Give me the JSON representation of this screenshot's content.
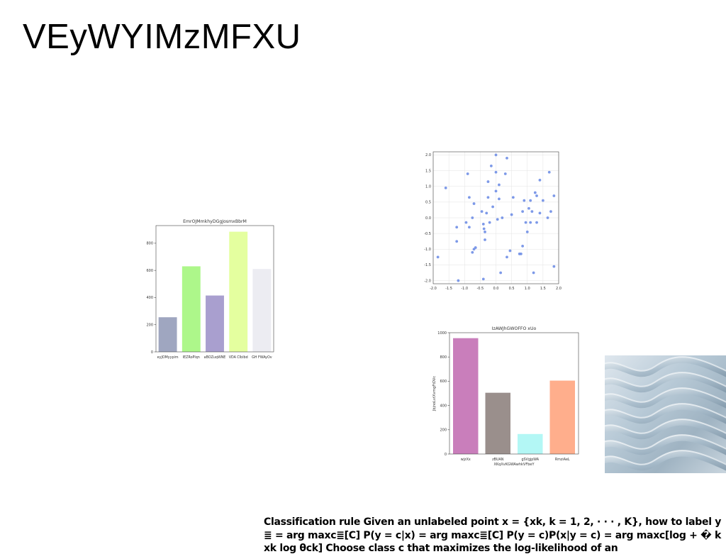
{
  "slide": {
    "title": "VEyWYIMzMFXU",
    "body_text": "Classification rule Given an unlabeled point x = {xk, k = 1, 2, · · · , K}, how to label y ≣ = arg maxc≣[C] P(y = c|x) = arg maxc≣[C] P(y = c)P(x|y = c) = arg maxc[log + � k xk log θck] Choose class c that maximizes the log-likelihood of an"
  },
  "chart_data": [
    {
      "type": "bar",
      "title": "EmrOJMmkhyDGgJosmxBbrM",
      "categories": [
        "eyJOMyypim",
        "IEZRoPlqn",
        "aBOZuqWNE",
        "VDA CIbIbd",
        "GH FWAyOv"
      ],
      "values": [
        255,
        630,
        415,
        885,
        610
      ],
      "colors": [
        "#9fa6c0",
        "#adf78a",
        "#a99fcf",
        "#e4ff9f",
        "#ececf2"
      ],
      "ylim": [
        0,
        930
      ],
      "yticks": [
        0,
        200,
        400,
        600,
        800
      ],
      "xlabel": "",
      "ylabel": ""
    },
    {
      "type": "scatter",
      "title": "",
      "xlim": [
        -2.0,
        2.0
      ],
      "ylim": [
        -2.1,
        2.1
      ],
      "xticks": [
        "-2.0",
        "-1.5",
        "-1.0",
        "-0.5",
        "0.0",
        "0.5",
        "1.0",
        "1.5",
        "2.0"
      ],
      "yticks": [
        "2.0",
        "1.5",
        "1.0",
        "0.5",
        "0.0",
        "-0.5",
        "-1.0",
        "-1.5",
        "-2.0"
      ],
      "grid": true,
      "color": "#6f8ee6",
      "points": [
        [
          -1.85,
          -1.25
        ],
        [
          -1.6,
          0.95
        ],
        [
          -1.25,
          -0.3
        ],
        [
          -1.25,
          -0.75
        ],
        [
          -1.2,
          -2.0
        ],
        [
          -0.95,
          -0.15
        ],
        [
          -0.9,
          1.4
        ],
        [
          -0.85,
          0.65
        ],
        [
          -0.85,
          -0.3
        ],
        [
          -0.75,
          0.0
        ],
        [
          -0.75,
          -1.1
        ],
        [
          -0.7,
          0.45
        ],
        [
          -0.7,
          -1.0
        ],
        [
          -0.65,
          -0.95
        ],
        [
          -0.45,
          0.2
        ],
        [
          -0.4,
          -0.2
        ],
        [
          -0.4,
          -1.95
        ],
        [
          -0.38,
          -0.35
        ],
        [
          -0.35,
          -0.45
        ],
        [
          -0.35,
          -0.7
        ],
        [
          -0.3,
          0.15
        ],
        [
          -0.25,
          1.15
        ],
        [
          -0.25,
          0.65
        ],
        [
          -0.2,
          -0.15
        ],
        [
          -0.15,
          1.65
        ],
        [
          -0.1,
          0.35
        ],
        [
          0.0,
          2.0
        ],
        [
          0.0,
          1.45
        ],
        [
          0.0,
          0.85
        ],
        [
          0.05,
          -0.05
        ],
        [
          0.1,
          1.05
        ],
        [
          0.1,
          0.6
        ],
        [
          0.15,
          -1.75
        ],
        [
          0.2,
          0.0
        ],
        [
          0.3,
          1.4
        ],
        [
          0.35,
          1.9
        ],
        [
          0.35,
          -1.25
        ],
        [
          0.45,
          -1.05
        ],
        [
          0.5,
          0.1
        ],
        [
          0.55,
          0.65
        ],
        [
          0.75,
          -1.15
        ],
        [
          0.8,
          -1.15
        ],
        [
          0.85,
          -0.9
        ],
        [
          0.85,
          0.2
        ],
        [
          0.9,
          0.55
        ],
        [
          0.95,
          -0.15
        ],
        [
          1.0,
          -0.45
        ],
        [
          1.05,
          0.3
        ],
        [
          1.1,
          0.55
        ],
        [
          1.1,
          -0.15
        ],
        [
          1.15,
          0.2
        ],
        [
          1.2,
          -1.75
        ],
        [
          1.25,
          0.8
        ],
        [
          1.3,
          0.7
        ],
        [
          1.3,
          -0.15
        ],
        [
          1.4,
          0.15
        ],
        [
          1.4,
          1.2
        ],
        [
          1.5,
          0.55
        ],
        [
          1.65,
          0.0
        ],
        [
          1.7,
          1.45
        ],
        [
          1.75,
          0.2
        ],
        [
          1.85,
          0.7
        ],
        [
          1.85,
          -1.55
        ]
      ]
    },
    {
      "type": "bar",
      "title": "IzAWJhGWOFFO xUo",
      "categories": [
        "wjzXx",
        "zBUAN",
        "gSVgjpWA",
        "RmziAeL"
      ],
      "values": [
        955,
        505,
        165,
        605
      ],
      "colors": [
        "#c97ebb",
        "#9a8f8c",
        "#b3f7f5",
        "#ffae8c"
      ],
      "ylim": [
        0,
        1000
      ],
      "yticks": [
        0,
        200,
        400,
        600,
        800,
        1000
      ],
      "xlabel": "XKqXvKGWAwhkVFbeY",
      "ylabel": "JbjnoLvtXvmgFtDVc"
    }
  ]
}
